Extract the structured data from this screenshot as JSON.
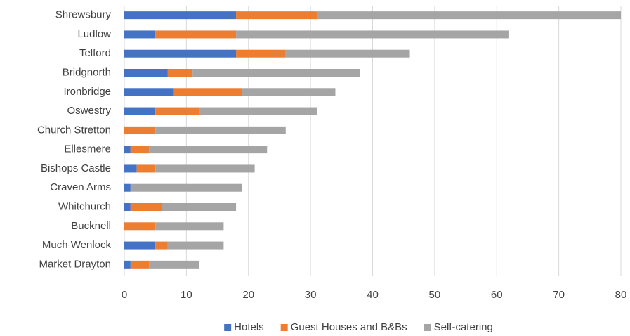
{
  "chart_data": {
    "type": "stacked-barh",
    "categories": [
      "Shrewsbury",
      "Ludlow",
      "Telford",
      "Bridgnorth",
      "Ironbridge",
      "Oswestry",
      "Church Stretton",
      "Ellesmere",
      "Bishops Castle",
      "Craven Arms",
      "Whitchurch",
      "Bucknell",
      "Much Wenlock",
      "Market Drayton"
    ],
    "series": [
      {
        "name": "Hotels",
        "color": "#4472c4",
        "values": [
          18,
          5,
          18,
          7,
          8,
          5,
          0,
          1,
          2,
          1,
          1,
          0,
          5,
          1
        ]
      },
      {
        "name": "Guest Houses and B&Bs",
        "color": "#ed7d31",
        "values": [
          13,
          13,
          8,
          4,
          11,
          7,
          5,
          3,
          3,
          0,
          5,
          5,
          2,
          3
        ]
      },
      {
        "name": "Self-catering",
        "color": "#a5a5a5",
        "values": [
          49,
          44,
          20,
          27,
          15,
          19,
          21,
          19,
          16,
          18,
          12,
          11,
          9,
          8
        ]
      }
    ],
    "xlim": [
      0,
      80
    ],
    "xticks": [
      0,
      10,
      20,
      30,
      40,
      50,
      60,
      70,
      80
    ],
    "grid": true,
    "legend": "bottom"
  }
}
